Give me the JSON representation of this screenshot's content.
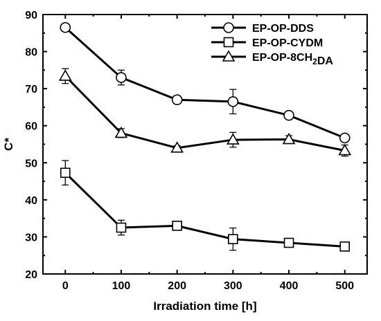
{
  "chart_data": {
    "type": "line",
    "title": "",
    "xlabel": "Irradiation time [h]",
    "ylabel": "C*",
    "xlim": [
      -40,
      540
    ],
    "ylim": [
      20,
      90
    ],
    "xticks": [
      0,
      100,
      200,
      300,
      400,
      500
    ],
    "yticks": [
      20,
      30,
      40,
      50,
      60,
      70,
      80,
      90
    ],
    "grid": false,
    "legend_position": "top-right",
    "series": [
      {
        "name": "EP-OP-DDS",
        "marker": "circle",
        "x": [
          0,
          100,
          200,
          300,
          400,
          500
        ],
        "values": [
          86.5,
          73.0,
          67.0,
          66.5,
          62.8,
          56.7
        ],
        "errors": [
          0.5,
          2.0,
          1.0,
          3.3,
          0.8,
          0.8
        ]
      },
      {
        "name": "EP-OP-CYDM",
        "marker": "square",
        "x": [
          0,
          100,
          200,
          300,
          400,
          500
        ],
        "values": [
          47.3,
          32.5,
          33.0,
          29.4,
          28.4,
          27.4
        ],
        "errors": [
          3.3,
          2.0,
          0.6,
          3.0,
          0.6,
          0.7
        ]
      },
      {
        "name": "EP-OP-8CH₂DA",
        "marker": "triangle",
        "x": [
          0,
          100,
          200,
          300,
          400,
          500
        ],
        "values": [
          73.4,
          58.0,
          54.0,
          56.2,
          56.3,
          53.3
        ],
        "errors": [
          2.0,
          1.2,
          0.6,
          2.0,
          1.0,
          1.5
        ]
      }
    ]
  }
}
